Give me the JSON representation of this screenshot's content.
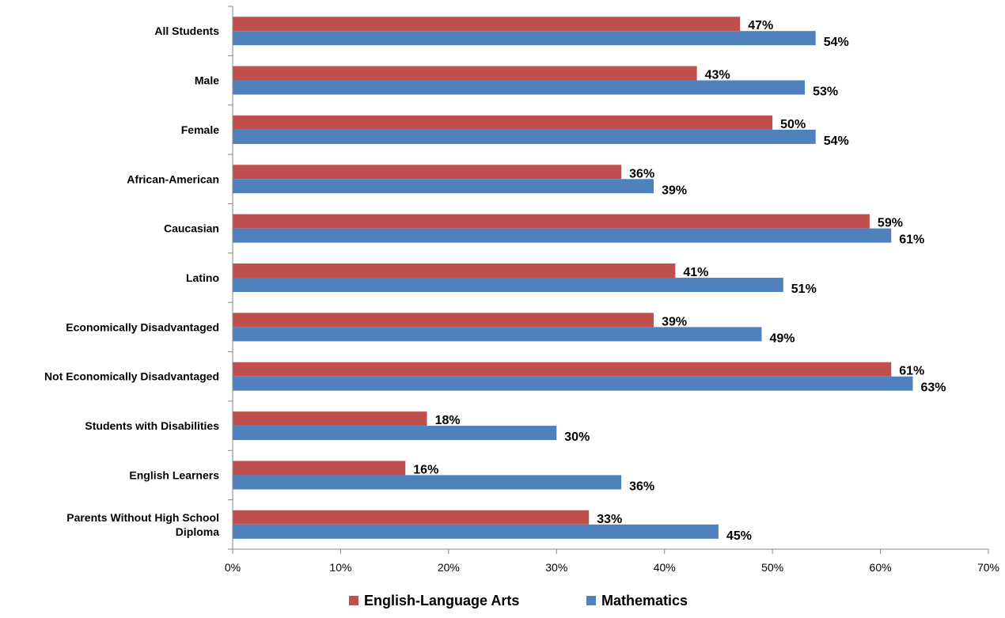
{
  "chart_data": {
    "type": "bar",
    "orientation": "horizontal",
    "title": "",
    "xlabel": "",
    "ylabel": "",
    "xlim": [
      0,
      70
    ],
    "x_ticks": [
      "0%",
      "10%",
      "20%",
      "30%",
      "40%",
      "50%",
      "60%",
      "70%"
    ],
    "x_tick_values": [
      0,
      10,
      20,
      30,
      40,
      50,
      60,
      70
    ],
    "grid": false,
    "legend_position": "bottom",
    "categories": [
      "All Students",
      "Male",
      "Female",
      "African-American",
      "Caucasian",
      "Latino",
      "Economically Disadvantaged",
      "Not Economically Disadvantaged",
      "Students with Disabilities",
      "English Learners",
      "Parents Without High School Diploma"
    ],
    "series": [
      {
        "name": "English-Language Arts",
        "color": "#C0504D",
        "values": [
          47,
          43,
          50,
          36,
          59,
          41,
          39,
          61,
          18,
          16,
          33
        ],
        "labels": [
          "47%",
          "43%",
          "50%",
          "36%",
          "59%",
          "41%",
          "39%",
          "61%",
          "18%",
          "16%",
          "33%"
        ]
      },
      {
        "name": "Mathematics",
        "color": "#4F81BD",
        "values": [
          54,
          53,
          54,
          39,
          61,
          51,
          49,
          63,
          30,
          36,
          45
        ],
        "labels": [
          "54%",
          "53%",
          "54%",
          "39%",
          "61%",
          "51%",
          "49%",
          "63%",
          "30%",
          "36%",
          "45%"
        ]
      }
    ]
  }
}
